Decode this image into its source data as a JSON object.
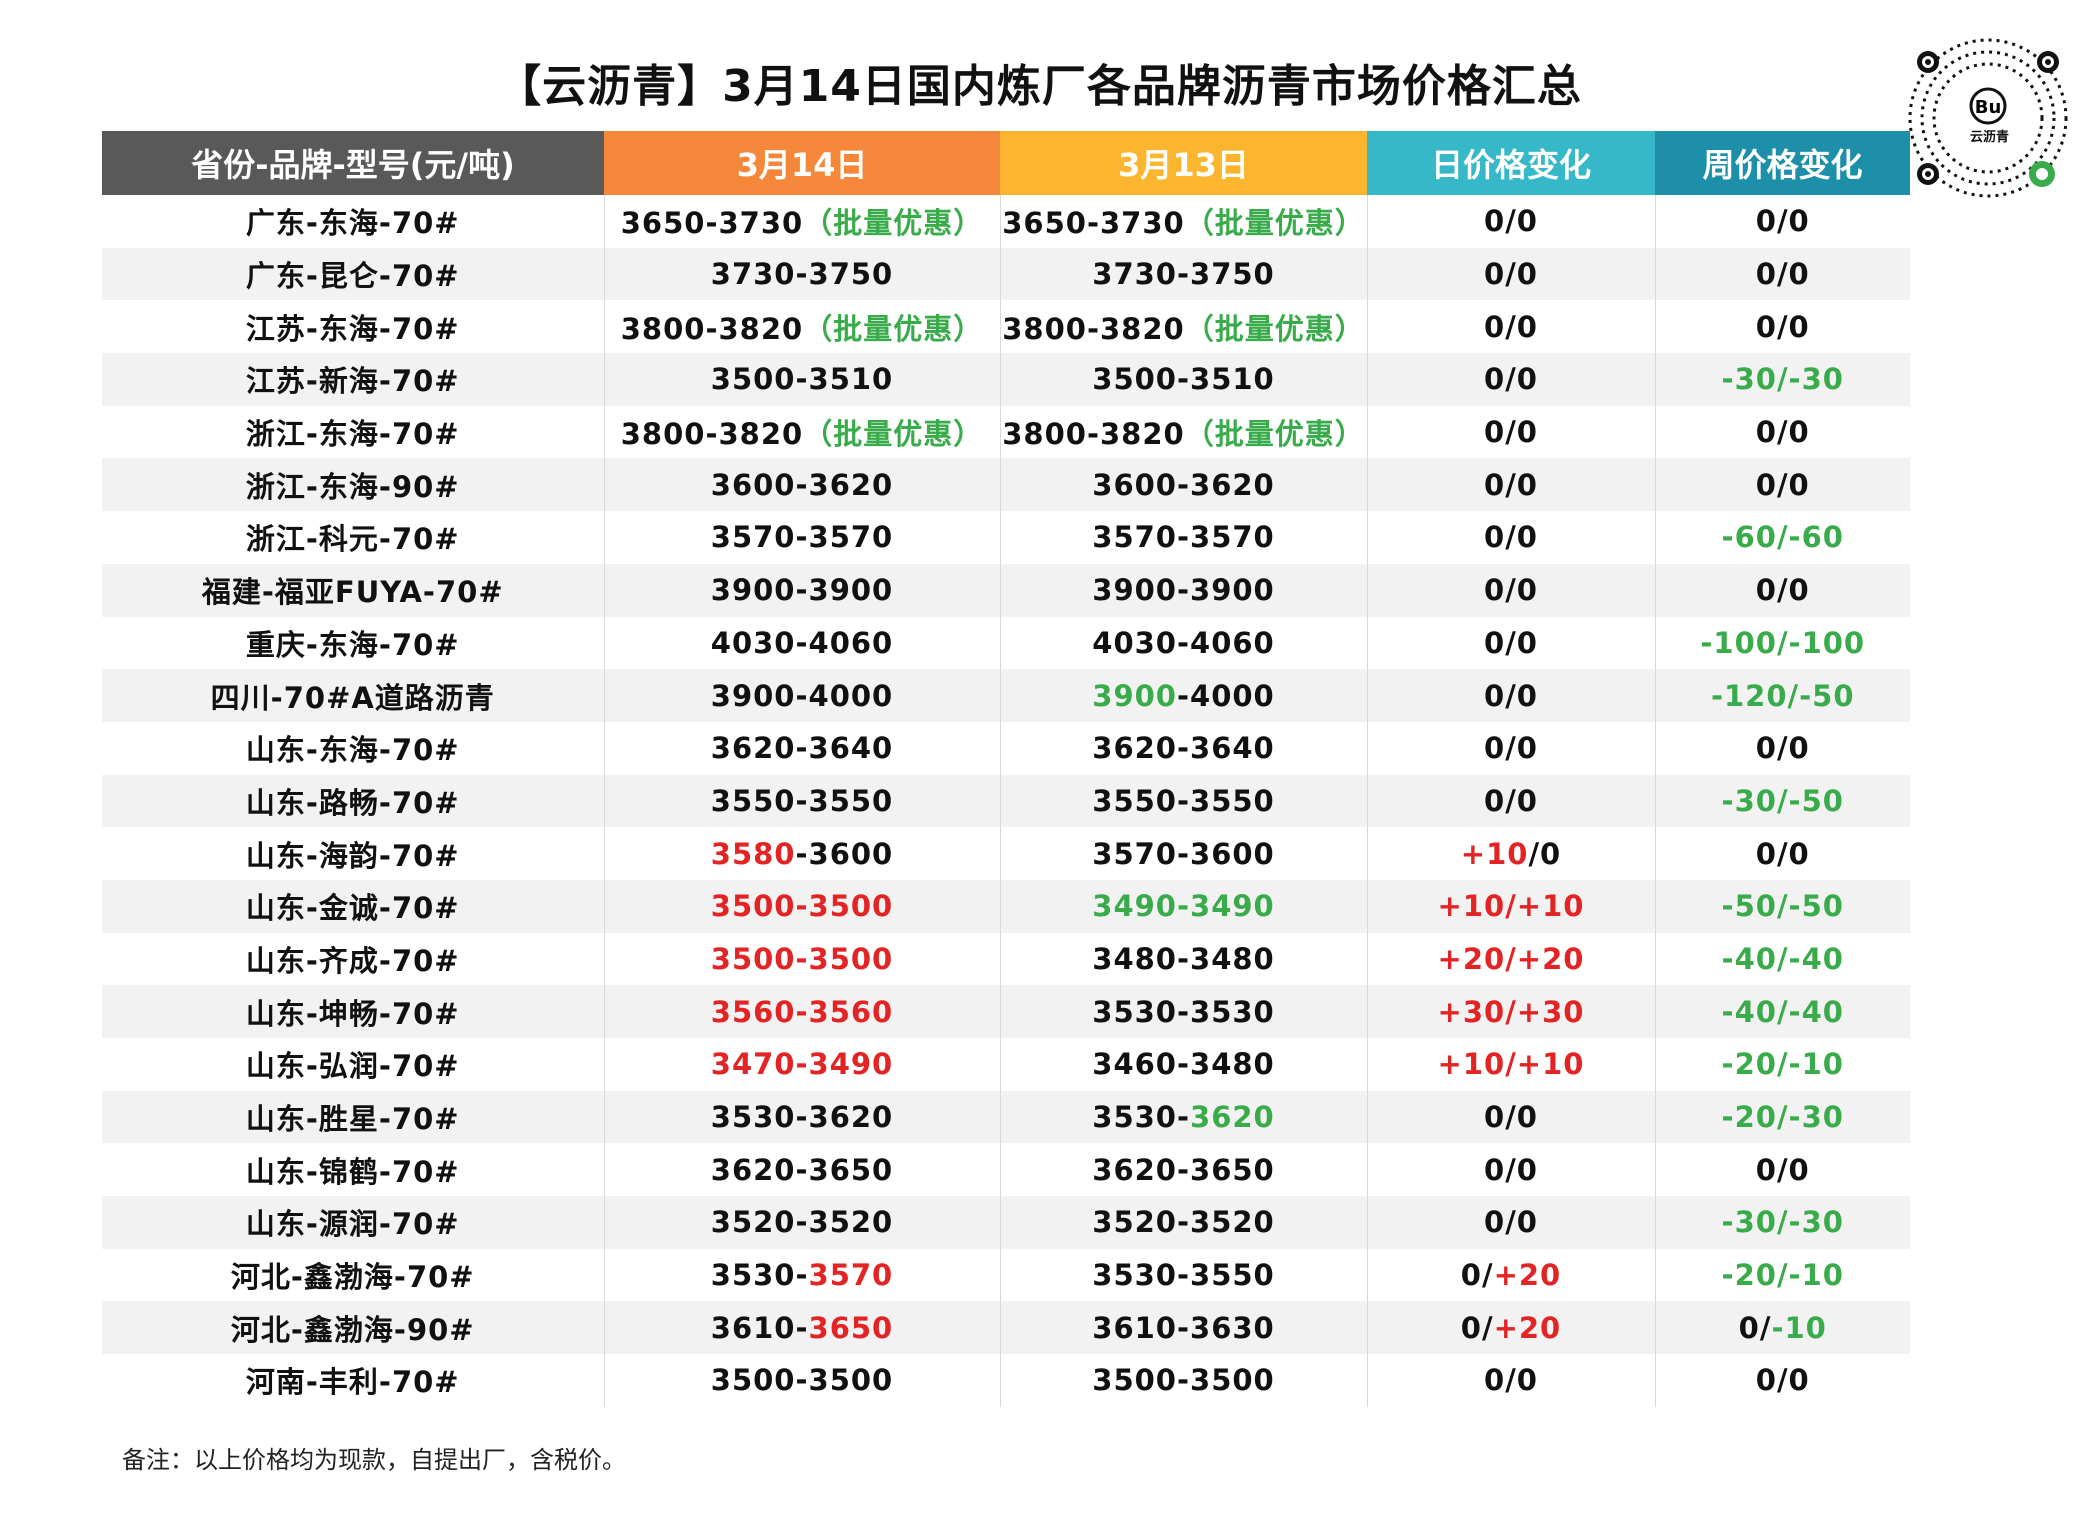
{
  "title": "【云沥青】3月14日国内炼厂各品牌沥青市场价格汇总",
  "logo_text": "云沥青",
  "headers": [
    "省份-品牌-型号(元/吨)",
    "3月14日",
    "3月13日",
    "日价格变化",
    "周价格变化"
  ],
  "colors": {
    "red": "#e32424",
    "green": "#3aab4a",
    "header_dark": "#595959",
    "header_orange": "#f5873a",
    "header_yellow": "#fbb52f",
    "header_teal": "#36b8c8",
    "header_blue": "#1e8fa9"
  },
  "rows": [
    {
      "name": "广东-东海-70#",
      "c1": [
        [
          "3650-3730",
          ""
        ],
        [
          "（批量优惠）",
          "green"
        ]
      ],
      "c2": [
        [
          "3650-3730",
          ""
        ],
        [
          "（批量优惠）",
          "green"
        ]
      ],
      "c3": [
        [
          "0/0",
          ""
        ]
      ],
      "c4": [
        [
          "0/0",
          ""
        ]
      ]
    },
    {
      "name": "广东-昆仑-70#",
      "c1": [
        [
          "3730-3750",
          ""
        ]
      ],
      "c2": [
        [
          "3730-3750",
          ""
        ]
      ],
      "c3": [
        [
          "0/0",
          ""
        ]
      ],
      "c4": [
        [
          "0/0",
          ""
        ]
      ]
    },
    {
      "name": "江苏-东海-70#",
      "c1": [
        [
          "3800-3820",
          ""
        ],
        [
          "（批量优惠）",
          "green"
        ]
      ],
      "c2": [
        [
          "3800-3820",
          ""
        ],
        [
          "（批量优惠）",
          "green"
        ]
      ],
      "c3": [
        [
          "0/0",
          ""
        ]
      ],
      "c4": [
        [
          "0/0",
          ""
        ]
      ]
    },
    {
      "name": "江苏-新海-70#",
      "c1": [
        [
          "3500-3510",
          ""
        ]
      ],
      "c2": [
        [
          "3500-3510",
          ""
        ]
      ],
      "c3": [
        [
          "0/0",
          ""
        ]
      ],
      "c4": [
        [
          "-30/-30",
          "green"
        ]
      ]
    },
    {
      "name": "浙江-东海-70#",
      "c1": [
        [
          "3800-3820",
          ""
        ],
        [
          "（批量优惠）",
          "green"
        ]
      ],
      "c2": [
        [
          "3800-3820",
          ""
        ],
        [
          "（批量优惠）",
          "green"
        ]
      ],
      "c3": [
        [
          "0/0",
          ""
        ]
      ],
      "c4": [
        [
          "0/0",
          ""
        ]
      ]
    },
    {
      "name": "浙江-东海-90#",
      "c1": [
        [
          "3600-3620",
          ""
        ]
      ],
      "c2": [
        [
          "3600-3620",
          ""
        ]
      ],
      "c3": [
        [
          "0/0",
          ""
        ]
      ],
      "c4": [
        [
          "0/0",
          ""
        ]
      ]
    },
    {
      "name": "浙江-科元-70#",
      "c1": [
        [
          "3570-3570",
          ""
        ]
      ],
      "c2": [
        [
          "3570-3570",
          ""
        ]
      ],
      "c3": [
        [
          "0/0",
          ""
        ]
      ],
      "c4": [
        [
          "-60/-60",
          "green"
        ]
      ]
    },
    {
      "name": "福建-福亚FUYA-70#",
      "c1": [
        [
          "3900-3900",
          ""
        ]
      ],
      "c2": [
        [
          "3900-3900",
          ""
        ]
      ],
      "c3": [
        [
          "0/0",
          ""
        ]
      ],
      "c4": [
        [
          "0/0",
          ""
        ]
      ]
    },
    {
      "name": "重庆-东海-70#",
      "c1": [
        [
          "4030-4060",
          ""
        ]
      ],
      "c2": [
        [
          "4030-4060",
          ""
        ]
      ],
      "c3": [
        [
          "0/0",
          ""
        ]
      ],
      "c4": [
        [
          "-100/-100",
          "green"
        ]
      ]
    },
    {
      "name": "四川-70#A道路沥青",
      "c1": [
        [
          "3900-4000",
          ""
        ]
      ],
      "c2": [
        [
          "3900",
          "green"
        ],
        [
          "-4000",
          ""
        ]
      ],
      "c3": [
        [
          "0/0",
          ""
        ]
      ],
      "c4": [
        [
          "-120/-50",
          "green"
        ]
      ]
    },
    {
      "name": "山东-东海-70#",
      "c1": [
        [
          "3620-3640",
          ""
        ]
      ],
      "c2": [
        [
          "3620-3640",
          ""
        ]
      ],
      "c3": [
        [
          "0/0",
          ""
        ]
      ],
      "c4": [
        [
          "0/0",
          ""
        ]
      ]
    },
    {
      "name": "山东-路畅-70#",
      "c1": [
        [
          "3550-3550",
          ""
        ]
      ],
      "c2": [
        [
          "3550-3550",
          ""
        ]
      ],
      "c3": [
        [
          "0/0",
          ""
        ]
      ],
      "c4": [
        [
          "-30/-50",
          "green"
        ]
      ]
    },
    {
      "name": "山东-海韵-70#",
      "c1": [
        [
          "3580",
          "red"
        ],
        [
          "-3600",
          ""
        ]
      ],
      "c2": [
        [
          "3570-3600",
          ""
        ]
      ],
      "c3": [
        [
          "+10",
          "red"
        ],
        [
          "/0",
          ""
        ]
      ],
      "c4": [
        [
          "0/0",
          ""
        ]
      ]
    },
    {
      "name": "山东-金诚-70#",
      "c1": [
        [
          "3500-3500",
          "red"
        ]
      ],
      "c2": [
        [
          "3490-3490",
          "green"
        ]
      ],
      "c3": [
        [
          "+10/+10",
          "red"
        ]
      ],
      "c4": [
        [
          "-50/-50",
          "green"
        ]
      ]
    },
    {
      "name": "山东-齐成-70#",
      "c1": [
        [
          "3500-3500",
          "red"
        ]
      ],
      "c2": [
        [
          "3480-3480",
          ""
        ]
      ],
      "c3": [
        [
          "+20/+20",
          "red"
        ]
      ],
      "c4": [
        [
          "-40/-40",
          "green"
        ]
      ]
    },
    {
      "name": "山东-坤畅-70#",
      "c1": [
        [
          "3560-3560",
          "red"
        ]
      ],
      "c2": [
        [
          "3530-3530",
          ""
        ]
      ],
      "c3": [
        [
          "+30/+30",
          "red"
        ]
      ],
      "c4": [
        [
          "-40/-40",
          "green"
        ]
      ]
    },
    {
      "name": "山东-弘润-70#",
      "c1": [
        [
          "3470-3490",
          "red"
        ]
      ],
      "c2": [
        [
          "3460-3480",
          ""
        ]
      ],
      "c3": [
        [
          "+10/+10",
          "red"
        ]
      ],
      "c4": [
        [
          "-20/-10",
          "green"
        ]
      ]
    },
    {
      "name": "山东-胜星-70#",
      "c1": [
        [
          "3530-3620",
          ""
        ]
      ],
      "c2": [
        [
          "3530-",
          ""
        ],
        [
          "3620",
          "green"
        ]
      ],
      "c3": [
        [
          "0/0",
          ""
        ]
      ],
      "c4": [
        [
          "-20/-30",
          "green"
        ]
      ]
    },
    {
      "name": "山东-锦鹤-70#",
      "c1": [
        [
          "3620-3650",
          ""
        ]
      ],
      "c2": [
        [
          "3620-3650",
          ""
        ]
      ],
      "c3": [
        [
          "0/0",
          ""
        ]
      ],
      "c4": [
        [
          "0/0",
          ""
        ]
      ]
    },
    {
      "name": "山东-源润-70#",
      "c1": [
        [
          "3520-3520",
          ""
        ]
      ],
      "c2": [
        [
          "3520-3520",
          ""
        ]
      ],
      "c3": [
        [
          "0/0",
          ""
        ]
      ],
      "c4": [
        [
          "-30/-30",
          "green"
        ]
      ]
    },
    {
      "name": "河北-鑫渤海-70#",
      "c1": [
        [
          "3530-",
          ""
        ],
        [
          "3570",
          "red"
        ]
      ],
      "c2": [
        [
          "3530-3550",
          ""
        ]
      ],
      "c3": [
        [
          "0/",
          ""
        ],
        [
          "+20",
          "red"
        ]
      ],
      "c4": [
        [
          "-20/-10",
          "green"
        ]
      ]
    },
    {
      "name": "河北-鑫渤海-90#",
      "c1": [
        [
          "3610-",
          ""
        ],
        [
          "3650",
          "red"
        ]
      ],
      "c2": [
        [
          "3610-3630",
          ""
        ]
      ],
      "c3": [
        [
          "0/",
          ""
        ],
        [
          "+20",
          "red"
        ]
      ],
      "c4": [
        [
          "0/",
          ""
        ],
        [
          "-10",
          "green"
        ]
      ]
    },
    {
      "name": "河南-丰利-70#",
      "c1": [
        [
          "3500-3500",
          ""
        ]
      ],
      "c2": [
        [
          "3500-3500",
          ""
        ]
      ],
      "c3": [
        [
          "0/0",
          ""
        ]
      ],
      "c4": [
        [
          "0/0",
          ""
        ]
      ]
    }
  ],
  "note": "备注：以上价格均为现款，自提出厂，含税价。"
}
